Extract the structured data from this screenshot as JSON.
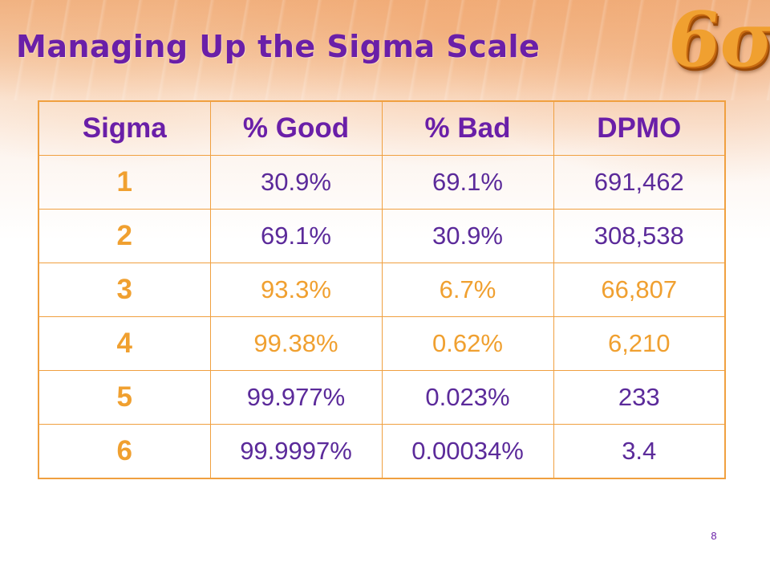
{
  "slide": {
    "title": "Managing Up the Sigma Scale",
    "logo_text": "6σ",
    "page_number": "8",
    "colors": {
      "title": "#6a1fa8",
      "accent_orange": "#f0a030",
      "table_border": "#f0a040",
      "purple_values": "#5b2a9a"
    }
  },
  "table": {
    "headers": [
      "Sigma",
      "% Good",
      "% Bad",
      "DPMO"
    ],
    "rows": [
      {
        "sigma": "1",
        "good": "30.9%",
        "bad": "69.1%",
        "dpmo": "691,462",
        "value_color": "purple"
      },
      {
        "sigma": "2",
        "good": "69.1%",
        "bad": "30.9%",
        "dpmo": "308,538",
        "value_color": "purple"
      },
      {
        "sigma": "3",
        "good": "93.3%",
        "bad": "6.7%",
        "dpmo": "66,807",
        "value_color": "orange"
      },
      {
        "sigma": "4",
        "good": "99.38%",
        "bad": "0.62%",
        "dpmo": "6,210",
        "value_color": "orange"
      },
      {
        "sigma": "5",
        "good": "99.977%",
        "bad": "0.023%",
        "dpmo": "233",
        "value_color": "purple"
      },
      {
        "sigma": "6",
        "good": "99.9997%",
        "bad": "0.00034%",
        "dpmo": "3.4",
        "value_color": "purple"
      }
    ]
  }
}
